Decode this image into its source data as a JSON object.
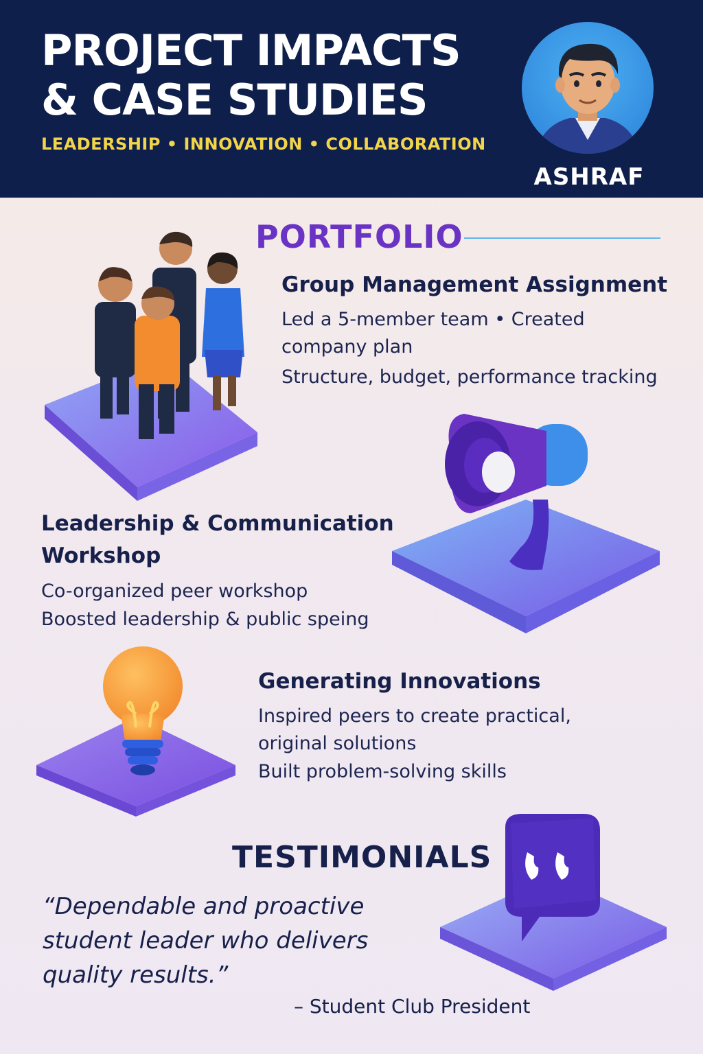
{
  "header": {
    "title_line1": "PROJECT IMPACTS",
    "title_line2": "& CASE STUDIES",
    "tagline": "LEADERSHIP • INNOVATION • COLLABORATION",
    "name": "ASHRAF"
  },
  "portfolio": {
    "heading": "PORTFOLIO",
    "items": [
      {
        "title": "Group Management Assignment",
        "lines": [
          "Led a 5-member team • Created",
          "company plan",
          "Structure, budget, performance tracking"
        ]
      },
      {
        "title_line1": "Leadership & Communication",
        "title_line2": "Workshop",
        "lines": [
          "Co-organized peer workshop",
          "Boosted leadership & public speing"
        ]
      },
      {
        "title": "Generating Innovations",
        "lines": [
          "Inspired peers to create practical,",
          "original solutions",
          "Built problem-solving skills"
        ]
      }
    ]
  },
  "testimonials": {
    "heading": "TESTIMONIALS",
    "quote_lines": [
      "“Dependable and proactive",
      "student leader who delivers",
      "quality results.”"
    ],
    "attribution": "– Student Club President"
  },
  "icons": [
    "avatar-portrait",
    "team-people",
    "megaphone",
    "lightbulb",
    "quote-bubble"
  ],
  "colors": {
    "header_bg": "#0f1f4b",
    "tagline": "#f2d54a",
    "portfolio_heading": "#6a33c4",
    "text_dark": "#16204a",
    "platform_blue": "#6f8cf0",
    "platform_purple": "#8a5ae8"
  }
}
